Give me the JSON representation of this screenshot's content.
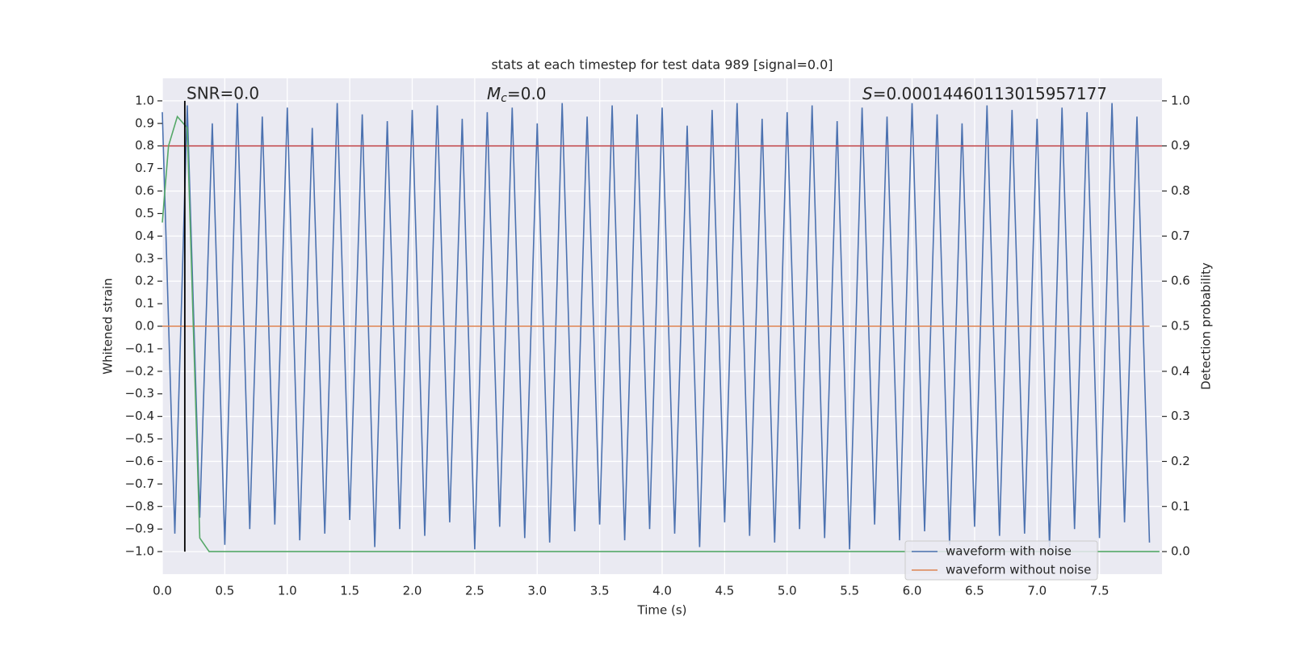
{
  "chart_data": {
    "type": "line",
    "title": "stats at each timestep for test data 989 [signal=0.0]",
    "x_label": "Time (s)",
    "y_label": "Whitened strain",
    "y2_label": "Detection probability",
    "annotations": {
      "snr": "SNR=0.0",
      "chirp_mass": {
        "symbol": "M",
        "subscript": "c",
        "text": "=0.0"
      },
      "score": {
        "symbol": "S",
        "text": "=0.00014460113015957177"
      }
    },
    "grid": true,
    "legend": "lower right",
    "xlim": [
      0,
      8
    ],
    "ylim": [
      -1.1,
      1.1
    ],
    "y2lim": [
      -0.05,
      1.05
    ],
    "xticks": [
      {
        "value": 0,
        "label": "0.0"
      },
      0.5,
      {
        "value": 1,
        "label": "1.0"
      },
      1.5,
      {
        "value": 2,
        "label": "2.0"
      },
      2.5,
      {
        "value": 3,
        "label": "3.0"
      },
      3.5,
      {
        "value": 4,
        "label": "4.0"
      },
      4.5,
      {
        "value": 5,
        "label": "5.0"
      },
      5.5,
      {
        "value": 6,
        "label": "6.0"
      },
      6.5,
      {
        "value": 7,
        "label": "7.0"
      },
      7.5
    ],
    "yticks": [
      {
        "value": 1,
        "label": "1.0"
      },
      0.9,
      0.8,
      0.7,
      0.6,
      0.5,
      0.4,
      0.3,
      0.2,
      0.1,
      {
        "value": 0,
        "label": "0.0"
      },
      {
        "value": -0.1,
        "label": "−0.1"
      },
      {
        "value": -0.2,
        "label": "−0.2"
      },
      {
        "value": -0.3,
        "label": "−0.3"
      },
      {
        "value": -0.4,
        "label": "−0.4"
      },
      {
        "value": -0.5,
        "label": "−0.5"
      },
      {
        "value": -0.6,
        "label": "−0.6"
      },
      {
        "value": -0.7,
        "label": "−0.7"
      },
      {
        "value": -0.8,
        "label": "−0.8"
      },
      {
        "value": -0.9,
        "label": "−0.9"
      },
      {
        "value": -1,
        "label": "−1.0"
      }
    ],
    "y2ticks": [
      {
        "value": 1,
        "label": "1.0"
      },
      0.9,
      0.8,
      0.7,
      0.6,
      0.5,
      0.4,
      0.3,
      0.2,
      0.1,
      {
        "value": 0,
        "label": "0.0"
      }
    ],
    "x": [
      0.0,
      0.1,
      0.2,
      0.3,
      0.4,
      0.5,
      0.6,
      0.7,
      0.8,
      0.9,
      1.0,
      1.1,
      1.2,
      1.3,
      1.4,
      1.5,
      1.6,
      1.7,
      1.8,
      1.9,
      2.0,
      2.1,
      2.2,
      2.3,
      2.4,
      2.5,
      2.6,
      2.7,
      2.8,
      2.9,
      3.0,
      3.1,
      3.2,
      3.3,
      3.4,
      3.5,
      3.6,
      3.7,
      3.8,
      3.9,
      4.0,
      4.1,
      4.2,
      4.3,
      4.4,
      4.5,
      4.6,
      4.7,
      4.8,
      4.9,
      5.0,
      5.1,
      5.2,
      5.3,
      5.4,
      5.5,
      5.6,
      5.7,
      5.8,
      5.9,
      6.0,
      6.1,
      6.2,
      6.3,
      6.4,
      6.5,
      6.6,
      6.7,
      6.8,
      6.9,
      7.0,
      7.1,
      7.2,
      7.3,
      7.4,
      7.5,
      7.6,
      7.7,
      7.8,
      7.9
    ],
    "series": [
      {
        "name": "waveform with noise",
        "color": "#4c72b0",
        "values": [
          0.95,
          -0.92,
          0.98,
          -0.85,
          0.9,
          -0.97,
          0.99,
          -0.9,
          0.93,
          -0.88,
          0.97,
          -0.95,
          0.88,
          -0.92,
          0.99,
          -0.86,
          0.94,
          -0.98,
          0.91,
          -0.9,
          0.96,
          -0.93,
          0.98,
          -0.87,
          0.92,
          -0.99,
          0.95,
          -0.89,
          0.97,
          -0.94,
          0.9,
          -0.96,
          0.99,
          -0.91,
          0.93,
          -0.88,
          0.98,
          -0.95,
          0.94,
          -0.9,
          0.97,
          -0.92,
          0.89,
          -0.98,
          0.96,
          -0.87,
          0.99,
          -0.93,
          0.92,
          -0.96,
          0.95,
          -0.9,
          0.98,
          -0.94,
          0.91,
          -0.99,
          0.97,
          -0.88,
          0.93,
          -0.95,
          0.99,
          -0.91,
          0.94,
          -0.97,
          0.9,
          -0.89,
          0.98,
          -0.93,
          0.96,
          -0.92,
          0.92,
          -0.98,
          0.97,
          -0.9,
          0.95,
          -0.94,
          0.99,
          -0.87,
          0.93,
          -0.96
        ]
      },
      {
        "name": "waveform without noise",
        "color": "#dd8452",
        "values": [
          0,
          0,
          0,
          0,
          0,
          0,
          0,
          0,
          0,
          0,
          0,
          0,
          0,
          0,
          0,
          0,
          0,
          0,
          0,
          0,
          0,
          0,
          0,
          0,
          0,
          0,
          0,
          0,
          0,
          0,
          0,
          0,
          0,
          0,
          0,
          0,
          0,
          0,
          0,
          0,
          0,
          0,
          0,
          0,
          0,
          0,
          0,
          0,
          0,
          0,
          0,
          0,
          0,
          0,
          0,
          0,
          0,
          0,
          0,
          0,
          0,
          0,
          0,
          0,
          0,
          0,
          0,
          0,
          0,
          0,
          0,
          0,
          0,
          0,
          0,
          0,
          0,
          0,
          0,
          0
        ]
      }
    ],
    "detection_probability": {
      "axis": "y2",
      "color": "#55a868",
      "x": [
        0,
        0.05,
        0.12,
        0.2,
        0.3,
        0.375,
        7.98
      ],
      "values": [
        0.73,
        0.9,
        0.965,
        0.94,
        0.03,
        0,
        0
      ]
    },
    "threshold": {
      "axis": "y2",
      "color": "#c44e52",
      "value": 0.9
    },
    "event_marker": {
      "color": "#000000",
      "x": 0.18,
      "ylim": [
        -1,
        1
      ]
    }
  }
}
